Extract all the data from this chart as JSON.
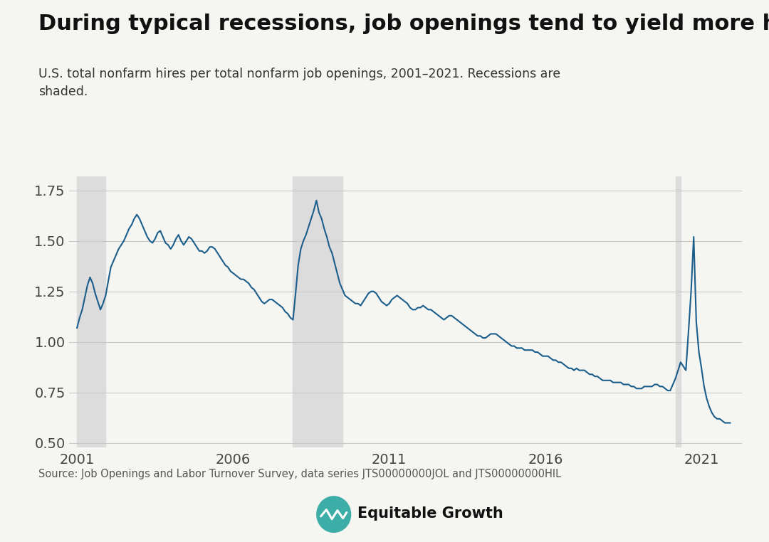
{
  "title": "During typical recessions, job openings tend to yield more hires",
  "subtitle": "U.S. total nonfarm hires per total nonfarm job openings, 2001–2021. Recessions are\nshaded.",
  "source": "Source: Job Openings and Labor Turnover Survey, data series JTS00000000JOL and JTS00000000HIL",
  "line_color": "#1b5e8b",
  "recession_color": "#dcdcdc",
  "background_color": "#f5f5f2",
  "ylim": [
    0.48,
    1.82
  ],
  "yticks": [
    0.5,
    0.75,
    1.0,
    1.25,
    1.5,
    1.75
  ],
  "xticks": [
    2001,
    2006,
    2011,
    2016,
    2021
  ],
  "recessions": [
    {
      "start": 2001.0,
      "end": 2001.917
    },
    {
      "start": 2007.917,
      "end": 2009.5
    },
    {
      "start": 2020.167,
      "end": 2020.333
    }
  ],
  "dates": [
    2001.0,
    2001.083,
    2001.167,
    2001.25,
    2001.333,
    2001.417,
    2001.5,
    2001.583,
    2001.667,
    2001.75,
    2001.833,
    2001.917,
    2002.0,
    2002.083,
    2002.167,
    2002.25,
    2002.333,
    2002.417,
    2002.5,
    2002.583,
    2002.667,
    2002.75,
    2002.833,
    2002.917,
    2003.0,
    2003.083,
    2003.167,
    2003.25,
    2003.333,
    2003.417,
    2003.5,
    2003.583,
    2003.667,
    2003.75,
    2003.833,
    2003.917,
    2004.0,
    2004.083,
    2004.167,
    2004.25,
    2004.333,
    2004.417,
    2004.5,
    2004.583,
    2004.667,
    2004.75,
    2004.833,
    2004.917,
    2005.0,
    2005.083,
    2005.167,
    2005.25,
    2005.333,
    2005.417,
    2005.5,
    2005.583,
    2005.667,
    2005.75,
    2005.833,
    2005.917,
    2006.0,
    2006.083,
    2006.167,
    2006.25,
    2006.333,
    2006.417,
    2006.5,
    2006.583,
    2006.667,
    2006.75,
    2006.833,
    2006.917,
    2007.0,
    2007.083,
    2007.167,
    2007.25,
    2007.333,
    2007.417,
    2007.5,
    2007.583,
    2007.667,
    2007.75,
    2007.833,
    2007.917,
    2008.0,
    2008.083,
    2008.167,
    2008.25,
    2008.333,
    2008.417,
    2008.5,
    2008.583,
    2008.667,
    2008.75,
    2008.833,
    2008.917,
    2009.0,
    2009.083,
    2009.167,
    2009.25,
    2009.333,
    2009.417,
    2009.5,
    2009.583,
    2009.667,
    2009.75,
    2009.833,
    2009.917,
    2010.0,
    2010.083,
    2010.167,
    2010.25,
    2010.333,
    2010.417,
    2010.5,
    2010.583,
    2010.667,
    2010.75,
    2010.833,
    2010.917,
    2011.0,
    2011.083,
    2011.167,
    2011.25,
    2011.333,
    2011.417,
    2011.5,
    2011.583,
    2011.667,
    2011.75,
    2011.833,
    2011.917,
    2012.0,
    2012.083,
    2012.167,
    2012.25,
    2012.333,
    2012.417,
    2012.5,
    2012.583,
    2012.667,
    2012.75,
    2012.833,
    2012.917,
    2013.0,
    2013.083,
    2013.167,
    2013.25,
    2013.333,
    2013.417,
    2013.5,
    2013.583,
    2013.667,
    2013.75,
    2013.833,
    2013.917,
    2014.0,
    2014.083,
    2014.167,
    2014.25,
    2014.333,
    2014.417,
    2014.5,
    2014.583,
    2014.667,
    2014.75,
    2014.833,
    2014.917,
    2015.0,
    2015.083,
    2015.167,
    2015.25,
    2015.333,
    2015.417,
    2015.5,
    2015.583,
    2015.667,
    2015.75,
    2015.833,
    2015.917,
    2016.0,
    2016.083,
    2016.167,
    2016.25,
    2016.333,
    2016.417,
    2016.5,
    2016.583,
    2016.667,
    2016.75,
    2016.833,
    2016.917,
    2017.0,
    2017.083,
    2017.167,
    2017.25,
    2017.333,
    2017.417,
    2017.5,
    2017.583,
    2017.667,
    2017.75,
    2017.833,
    2017.917,
    2018.0,
    2018.083,
    2018.167,
    2018.25,
    2018.333,
    2018.417,
    2018.5,
    2018.583,
    2018.667,
    2018.75,
    2018.833,
    2018.917,
    2019.0,
    2019.083,
    2019.167,
    2019.25,
    2019.333,
    2019.417,
    2019.5,
    2019.583,
    2019.667,
    2019.75,
    2019.833,
    2019.917,
    2020.0,
    2020.083,
    2020.167,
    2020.25,
    2020.333,
    2020.417,
    2020.5,
    2020.583,
    2020.667,
    2020.75,
    2020.833,
    2020.917,
    2021.0,
    2021.083,
    2021.167,
    2021.25,
    2021.333,
    2021.417,
    2021.5,
    2021.583,
    2021.667,
    2021.75,
    2021.833,
    2021.917
  ],
  "values": [
    1.07,
    1.12,
    1.16,
    1.22,
    1.28,
    1.32,
    1.29,
    1.24,
    1.2,
    1.16,
    1.19,
    1.23,
    1.3,
    1.37,
    1.4,
    1.43,
    1.46,
    1.48,
    1.5,
    1.53,
    1.56,
    1.58,
    1.61,
    1.63,
    1.61,
    1.58,
    1.55,
    1.52,
    1.5,
    1.49,
    1.51,
    1.54,
    1.55,
    1.52,
    1.49,
    1.48,
    1.46,
    1.48,
    1.51,
    1.53,
    1.5,
    1.48,
    1.5,
    1.52,
    1.51,
    1.49,
    1.47,
    1.45,
    1.45,
    1.44,
    1.45,
    1.47,
    1.47,
    1.46,
    1.44,
    1.42,
    1.4,
    1.38,
    1.37,
    1.35,
    1.34,
    1.33,
    1.32,
    1.31,
    1.31,
    1.3,
    1.29,
    1.27,
    1.26,
    1.24,
    1.22,
    1.2,
    1.19,
    1.2,
    1.21,
    1.21,
    1.2,
    1.19,
    1.18,
    1.17,
    1.15,
    1.14,
    1.12,
    1.11,
    1.24,
    1.38,
    1.46,
    1.5,
    1.53,
    1.57,
    1.61,
    1.65,
    1.7,
    1.64,
    1.61,
    1.56,
    1.52,
    1.47,
    1.44,
    1.39,
    1.34,
    1.29,
    1.26,
    1.23,
    1.22,
    1.21,
    1.2,
    1.19,
    1.19,
    1.18,
    1.2,
    1.22,
    1.24,
    1.25,
    1.25,
    1.24,
    1.22,
    1.2,
    1.19,
    1.18,
    1.19,
    1.21,
    1.22,
    1.23,
    1.22,
    1.21,
    1.2,
    1.19,
    1.17,
    1.16,
    1.16,
    1.17,
    1.17,
    1.18,
    1.17,
    1.16,
    1.16,
    1.15,
    1.14,
    1.13,
    1.12,
    1.11,
    1.12,
    1.13,
    1.13,
    1.12,
    1.11,
    1.1,
    1.09,
    1.08,
    1.07,
    1.06,
    1.05,
    1.04,
    1.03,
    1.03,
    1.02,
    1.02,
    1.03,
    1.04,
    1.04,
    1.04,
    1.03,
    1.02,
    1.01,
    1.0,
    0.99,
    0.98,
    0.98,
    0.97,
    0.97,
    0.97,
    0.96,
    0.96,
    0.96,
    0.96,
    0.95,
    0.95,
    0.94,
    0.93,
    0.93,
    0.93,
    0.92,
    0.91,
    0.91,
    0.9,
    0.9,
    0.89,
    0.88,
    0.87,
    0.87,
    0.86,
    0.87,
    0.86,
    0.86,
    0.86,
    0.85,
    0.84,
    0.84,
    0.83,
    0.83,
    0.82,
    0.81,
    0.81,
    0.81,
    0.81,
    0.8,
    0.8,
    0.8,
    0.8,
    0.79,
    0.79,
    0.79,
    0.78,
    0.78,
    0.77,
    0.77,
    0.77,
    0.78,
    0.78,
    0.78,
    0.78,
    0.79,
    0.79,
    0.78,
    0.78,
    0.77,
    0.76,
    0.76,
    0.79,
    0.82,
    0.86,
    0.9,
    0.88,
    0.86,
    1.05,
    1.25,
    1.52,
    1.1,
    0.95,
    0.87,
    0.78,
    0.72,
    0.68,
    0.65,
    0.63,
    0.62,
    0.62,
    0.61,
    0.6,
    0.6,
    0.6
  ]
}
